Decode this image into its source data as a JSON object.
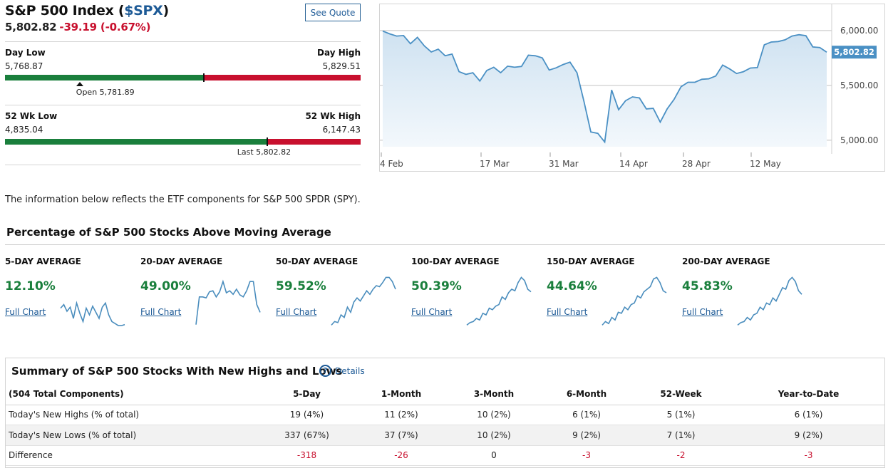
{
  "header": {
    "title_prefix": "S&P 500 Index (",
    "ticker": "$SPX",
    "title_suffix": ")",
    "last": "5,802.82",
    "change": "-39.19 (-0.67%)",
    "see_quote": "See Quote"
  },
  "day_range": {
    "low_label": "Day Low",
    "low": "5,768.87",
    "high_label": "Day High",
    "high": "5,829.51",
    "open_text": "Open 5,781.89",
    "position_fraction": 0.56,
    "open_fraction": 0.21
  },
  "wk52_range": {
    "low_label": "52 Wk Low",
    "low": "4,835.04",
    "high_label": "52 Wk High",
    "high": "6,147.43",
    "last_text": "Last 5,802.82",
    "position_fraction": 0.737
  },
  "chart_data": {
    "type": "area",
    "x_ticks": [
      "4 Feb",
      "17 Mar",
      "31 Mar",
      "14 Apr",
      "28 Apr",
      "12 May"
    ],
    "y_ticks": [
      "6,000.00",
      "5,500.00",
      "5,000.00"
    ],
    "y_tick_values": [
      6000,
      5500,
      5000
    ],
    "ylim": [
      4940,
      6220
    ],
    "last_label": "5,802.82",
    "last_value": 5802.82,
    "values": [
      5995,
      5970,
      5950,
      5954,
      5880,
      5938,
      5860,
      5805,
      5830,
      5770,
      5785,
      5625,
      5600,
      5615,
      5540,
      5636,
      5665,
      5615,
      5675,
      5665,
      5672,
      5775,
      5770,
      5750,
      5640,
      5660,
      5690,
      5712,
      5615,
      5355,
      5075,
      5062,
      4983,
      5458,
      5278,
      5360,
      5395,
      5385,
      5285,
      5290,
      5165,
      5285,
      5372,
      5488,
      5528,
      5528,
      5555,
      5560,
      5585,
      5685,
      5650,
      5608,
      5625,
      5658,
      5662,
      5870,
      5895,
      5900,
      5915,
      5950,
      5962,
      5953,
      5850,
      5845,
      5802.82
    ],
    "accent": "#4a90c4"
  },
  "intro_text": "The information below reflects the ETF components for S&P 500 SPDR (SPY).",
  "moving_averages": {
    "heading": "Percentage of S&P 500 Stocks Above Moving Average",
    "link_label": "Full Chart",
    "items": [
      {
        "label": "5-DAY AVERAGE",
        "value": "12.10%",
        "spark": [
          62,
          55,
          68,
          60,
          82,
          52,
          72,
          88,
          62,
          75,
          58,
          70,
          82,
          60,
          52,
          75,
          88,
          92,
          96,
          96,
          94
        ]
      },
      {
        "label": "20-DAY AVERAGE",
        "value": "49.00%",
        "spark": [
          94,
          40,
          40,
          42,
          30,
          28,
          40,
          30,
          10,
          32,
          28,
          35,
          25,
          36,
          40,
          28,
          10,
          10,
          55,
          70
        ]
      },
      {
        "label": "50-DAY AVERAGE",
        "value": "59.52%",
        "spark": [
          95,
          88,
          90,
          75,
          80,
          60,
          70,
          50,
          42,
          48,
          38,
          28,
          35,
          25,
          18,
          20,
          12,
          2,
          2,
          10,
          25
        ]
      },
      {
        "label": "100-DAY AVERAGE",
        "value": "50.39%",
        "spark": [
          95,
          90,
          88,
          82,
          85,
          72,
          75,
          62,
          65,
          58,
          55,
          40,
          45,
          32,
          25,
          28,
          12,
          2,
          8,
          25,
          30
        ]
      },
      {
        "label": "150-DAY AVERAGE",
        "value": "44.64%",
        "spark": [
          95,
          88,
          92,
          80,
          85,
          70,
          72,
          60,
          65,
          55,
          52,
          38,
          42,
          30,
          25,
          20,
          5,
          2,
          12,
          28,
          32
        ]
      },
      {
        "label": "200-DAY AVERAGE",
        "value": "45.83%",
        "spark": [
          95,
          90,
          88,
          80,
          85,
          75,
          72,
          60,
          65,
          52,
          55,
          42,
          48,
          35,
          22,
          25,
          8,
          2,
          10,
          28,
          35
        ]
      }
    ]
  },
  "summary": {
    "title": "Summary of S&P 500 Stocks With New Highs and Lows",
    "help": "?",
    "details": "Details",
    "columns": [
      "(504 Total Components)",
      "5-Day",
      "1-Month",
      "3-Month",
      "6-Month",
      "52-Week",
      "Year-to-Date"
    ],
    "rows": [
      [
        "Today's New Highs (% of total)",
        "19 (4%)",
        "11 (2%)",
        "10 (2%)",
        "6 (1%)",
        "5 (1%)",
        "6 (1%)"
      ],
      [
        "Today's New Lows (% of total)",
        "337 (67%)",
        "37 (7%)",
        "10 (2%)",
        "9 (2%)",
        "7 (1%)",
        "9 (2%)"
      ],
      [
        "Difference",
        "-318",
        "-26",
        "0",
        "-3",
        "-2",
        "-3"
      ]
    ]
  }
}
